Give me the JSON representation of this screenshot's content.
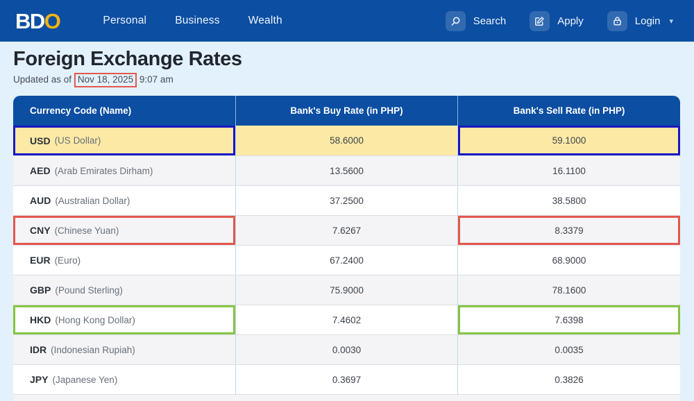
{
  "brand": {
    "logo_bd": "BD",
    "logo_o": "O"
  },
  "navbar": {
    "items": [
      {
        "label": "Personal"
      },
      {
        "label": "Business"
      },
      {
        "label": "Wealth"
      }
    ],
    "actions": {
      "search": {
        "label": "Search",
        "icon": "search-icon"
      },
      "apply": {
        "label": "Apply",
        "icon": "edit-icon"
      },
      "login": {
        "label": "Login",
        "icon": "lock-icon",
        "caret": "▾"
      }
    }
  },
  "page": {
    "title": "Foreign Exchange Rates",
    "updated_prefix": "Updated as of",
    "updated_date": "Nov 18, 2025",
    "updated_time": "9:07 am"
  },
  "table": {
    "columns": [
      "Currency Code (Name)",
      "Bank's Buy Rate (in PHP)",
      "Bank's Sell Rate (in PHP)"
    ],
    "rows": [
      {
        "code": "USD",
        "name": "(US Dollar)",
        "buy": "58.6000",
        "sell": "59.1000",
        "highlight": "yellow",
        "annotation": "blue"
      },
      {
        "code": "AED",
        "name": "(Arab Emirates Dirham)",
        "buy": "13.5600",
        "sell": "16.1100"
      },
      {
        "code": "AUD",
        "name": "(Australian Dollar)",
        "buy": "37.2500",
        "sell": "38.5800"
      },
      {
        "code": "CNY",
        "name": "(Chinese Yuan)",
        "buy": "7.6267",
        "sell": "8.3379",
        "annotation": "red"
      },
      {
        "code": "EUR",
        "name": "(Euro)",
        "buy": "67.2400",
        "sell": "68.9000"
      },
      {
        "code": "GBP",
        "name": "(Pound Sterling)",
        "buy": "75.9000",
        "sell": "78.1600"
      },
      {
        "code": "HKD",
        "name": "(Hong Kong Dollar)",
        "buy": "7.4602",
        "sell": "7.6398",
        "annotation": "green"
      },
      {
        "code": "IDR",
        "name": "(Indonesian Rupiah)",
        "buy": "0.0030",
        "sell": "0.0035"
      },
      {
        "code": "JPY",
        "name": "(Japanese Yen)",
        "buy": "0.3697",
        "sell": "0.3826"
      }
    ]
  },
  "colors": {
    "brand_blue": "#0B4EA2",
    "page_bg": "#E3F1FC",
    "logo_gold": "#F5B40E",
    "highlight_yellow": "#FCE9A5",
    "ann_blue": "#1A17C5",
    "ann_red": "#E4574C",
    "ann_green": "#86C441"
  }
}
